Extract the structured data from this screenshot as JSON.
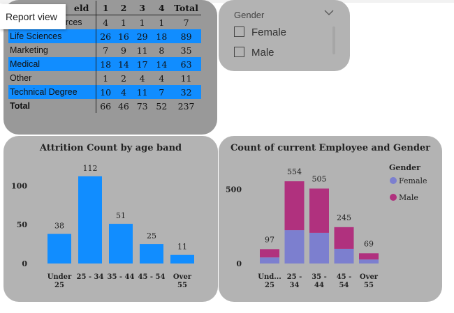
{
  "tooltip": {
    "label": "Report view"
  },
  "matrix": {
    "header": [
      "eld",
      "1",
      "2",
      "3",
      "4",
      "Total"
    ],
    "rows": [
      {
        "label": "Human Resources",
        "v": [
          "4",
          "1",
          "1",
          "1",
          "7"
        ],
        "highlight": false
      },
      {
        "label": "Life Sciences",
        "v": [
          "26",
          "16",
          "29",
          "18",
          "89"
        ],
        "highlight": true
      },
      {
        "label": "Marketing",
        "v": [
          "7",
          "9",
          "11",
          "8",
          "35"
        ],
        "highlight": false
      },
      {
        "label": "Medical",
        "v": [
          "18",
          "14",
          "17",
          "14",
          "63"
        ],
        "highlight": true
      },
      {
        "label": "Other",
        "v": [
          "1",
          "2",
          "4",
          "4",
          "11"
        ],
        "highlight": false
      },
      {
        "label": "Technical Degree",
        "v": [
          "10",
          "4",
          "11",
          "7",
          "32"
        ],
        "highlight": true
      }
    ],
    "total": {
      "label": "Total",
      "v": [
        "66",
        "46",
        "73",
        "52",
        "237"
      ]
    }
  },
  "slicer": {
    "title": "Gender",
    "options": [
      "Female",
      "Male"
    ]
  },
  "chart_data": [
    {
      "type": "bar",
      "title": "Attrition Count by age band",
      "categories": [
        "Under 25",
        "25 - 34",
        "35 - 44",
        "45 - 54",
        "Over 55"
      ],
      "category_lines": [
        [
          "Under",
          "25"
        ],
        [
          "25 - 34"
        ],
        [
          "35 - 44"
        ],
        [
          "45 - 54"
        ],
        [
          "Over",
          "55"
        ]
      ],
      "values": [
        38,
        112,
        51,
        25,
        11
      ],
      "yticks": [
        0,
        50,
        100
      ],
      "ylim": [
        0,
        120
      ],
      "color": "#118dff"
    },
    {
      "type": "bar",
      "stacked": true,
      "title": "Count of current Employee and Gender",
      "categories": [
        "Und... 25",
        "25 - 34",
        "35 - 44",
        "45 - 54",
        "Over 55"
      ],
      "category_lines": [
        [
          "Und...",
          "25"
        ],
        [
          "25 -",
          "34"
        ],
        [
          "35 -",
          "44"
        ],
        [
          "45 -",
          "54"
        ],
        [
          "Over",
          "55"
        ]
      ],
      "totals": [
        97,
        554,
        505,
        245,
        69
      ],
      "series": [
        {
          "name": "Female",
          "values": [
            41,
            225,
            207,
            99,
            27
          ],
          "color": "#7c7fcf"
        },
        {
          "name": "Male",
          "values": [
            56,
            329,
            298,
            146,
            42
          ],
          "color": "#b0317e"
        }
      ],
      "yticks": [
        0,
        500
      ],
      "ylim": [
        0,
        620
      ],
      "legend": {
        "title": "Gender",
        "position": "top-right"
      }
    }
  ]
}
